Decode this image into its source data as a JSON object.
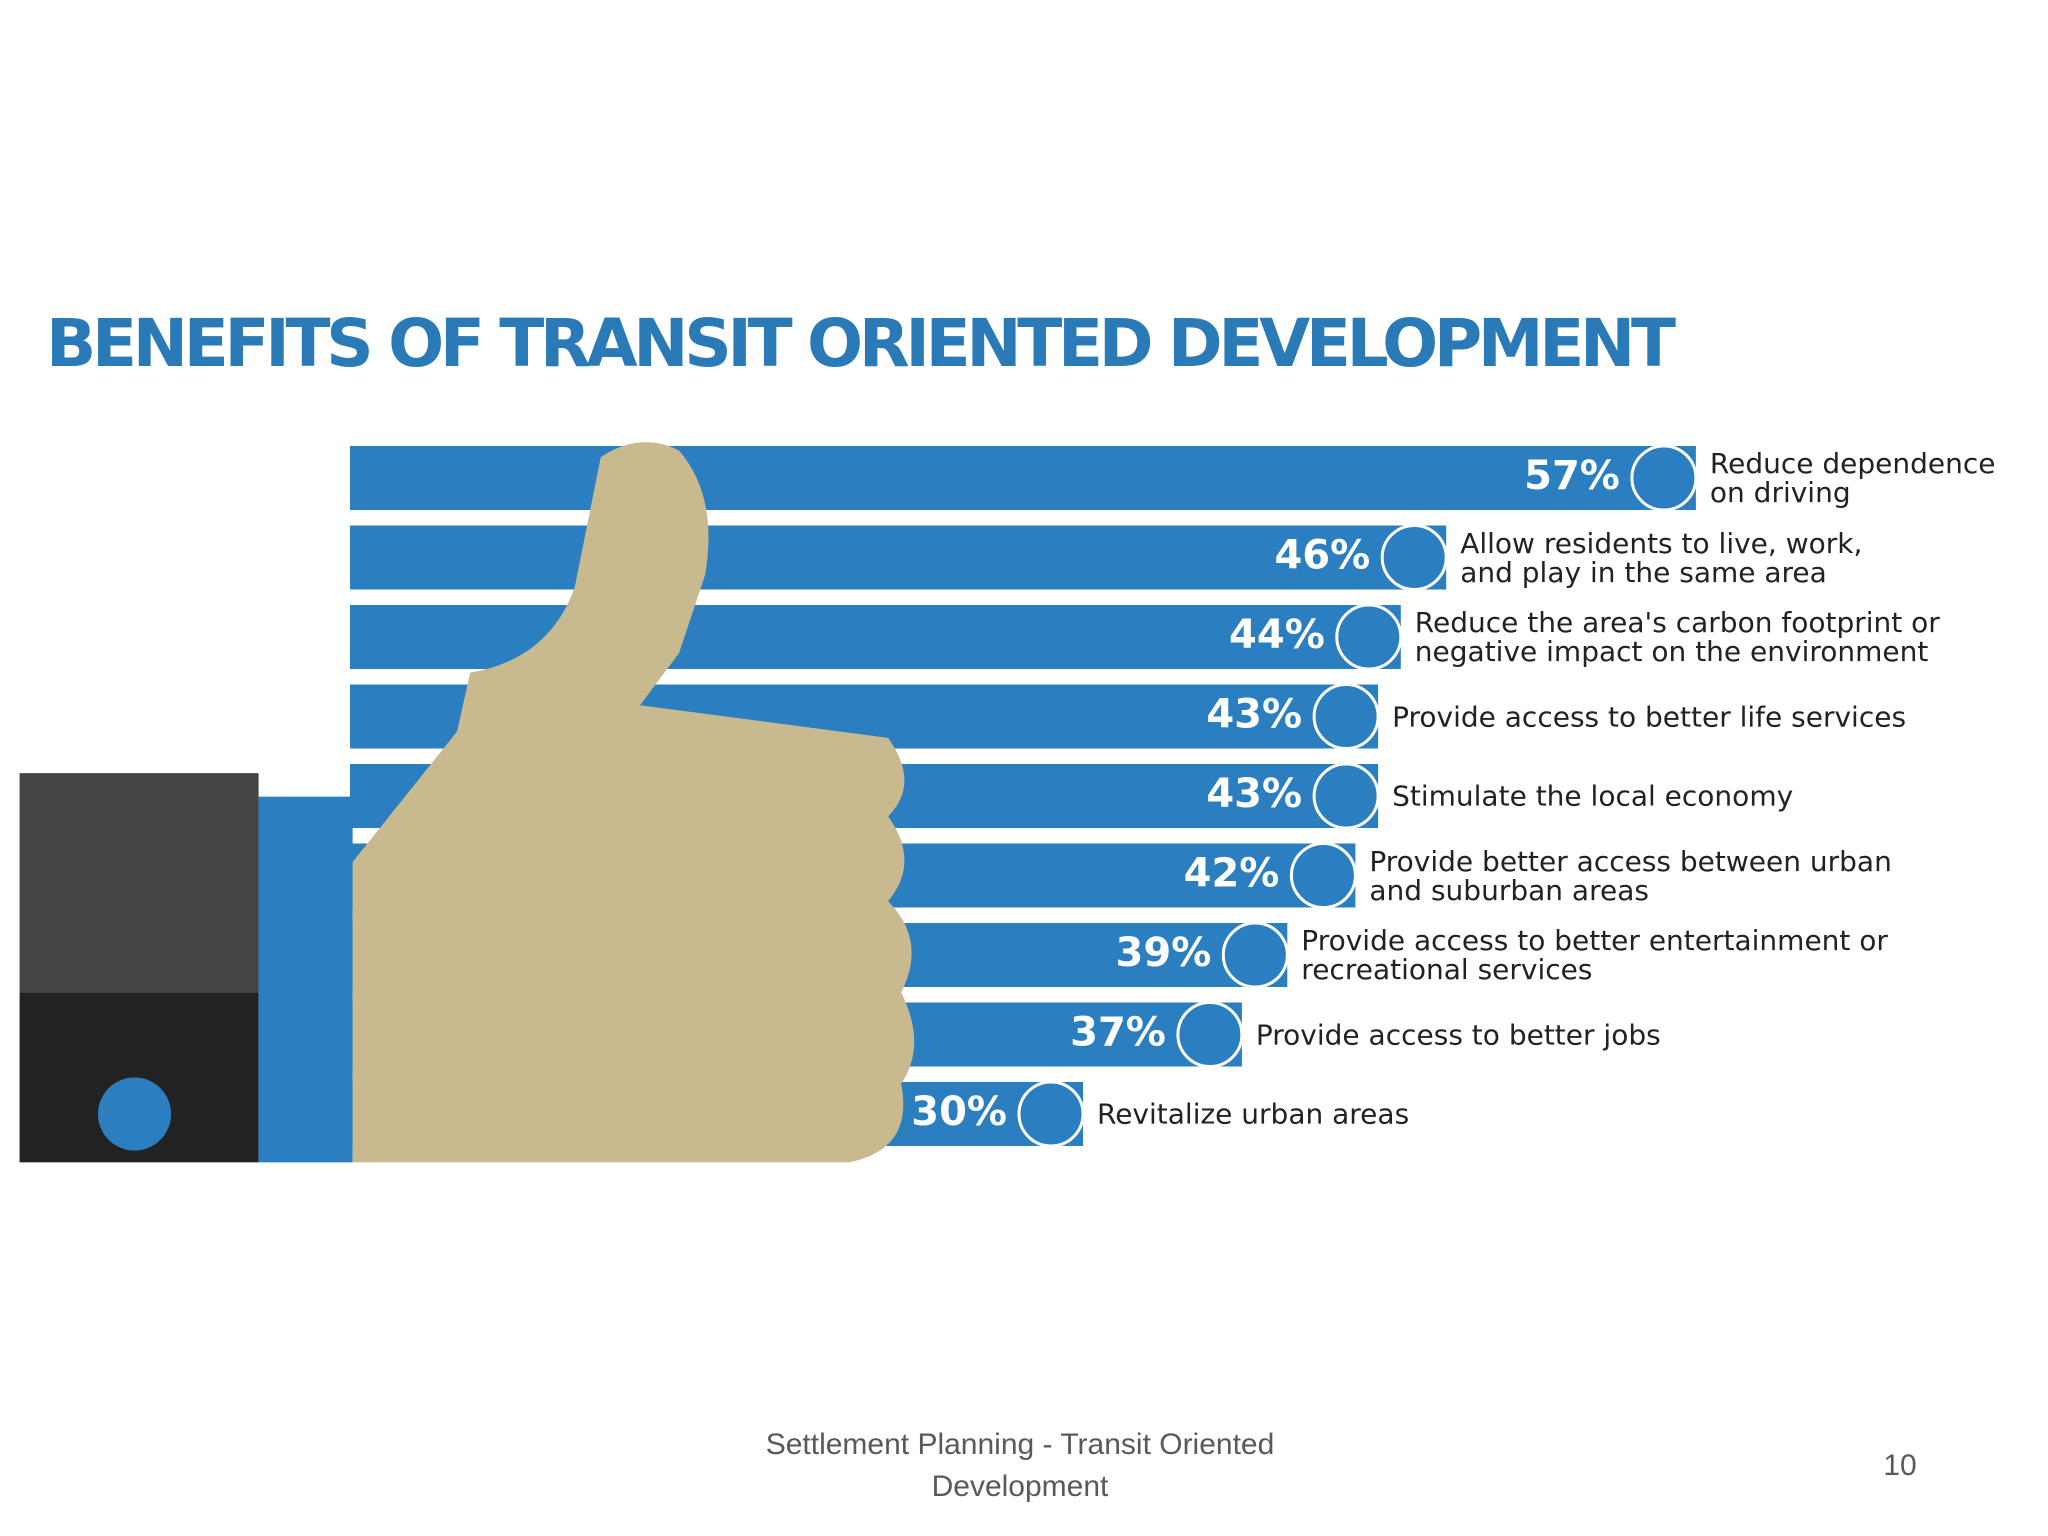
{
  "chart_data": {
    "type": "bar",
    "orientation": "horizontal",
    "title": "BENEFITS OF TRANSIT ORIENTED DEVELOPMENT",
    "categories": [
      "Reduce dependence on driving",
      "Allow residents to live, work, and play in the same area",
      "Reduce the area's carbon footprint or negative impact on the environment",
      "Provide access to better life services",
      "Stimulate the local economy",
      "Provide better access between urban and suburban areas",
      "Provide access to better entertainment or recreational services",
      "Provide access to better jobs",
      "Revitalize urban areas"
    ],
    "values": [
      57,
      46,
      44,
      43,
      43,
      42,
      39,
      37,
      30
    ],
    "value_labels": [
      "57%",
      "46%",
      "44%",
      "43%",
      "43%",
      "42%",
      "39%",
      "37%",
      "30%"
    ],
    "color": "#2b7fc0"
  },
  "footer": {
    "text": "Settlement Planning - Transit Oriented Development",
    "page_number": "10"
  }
}
